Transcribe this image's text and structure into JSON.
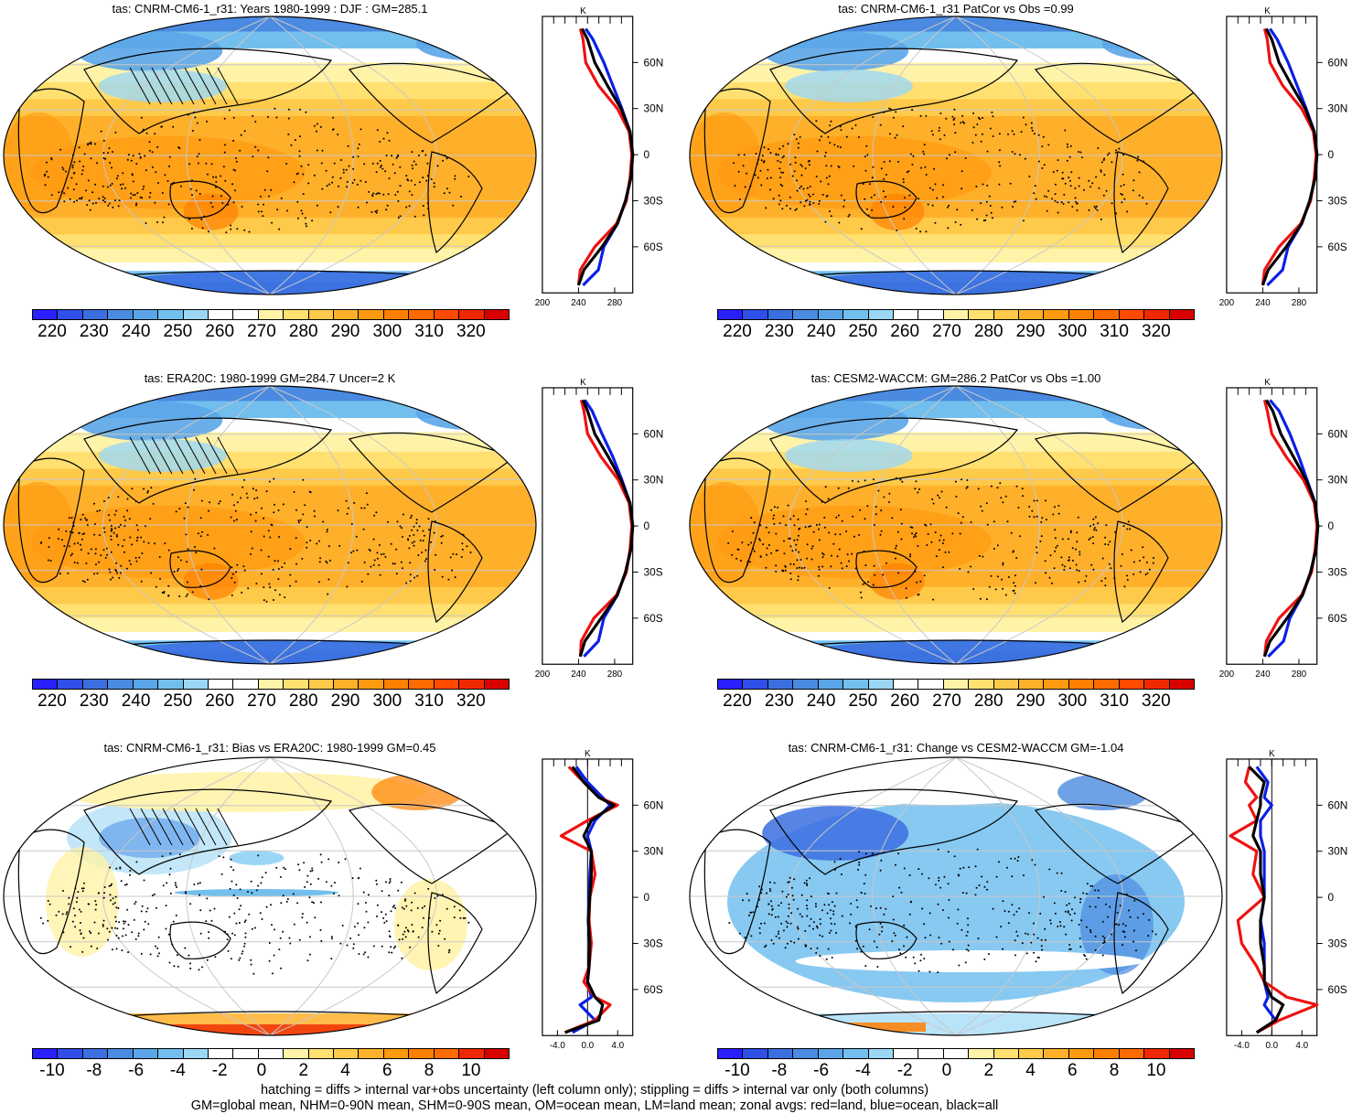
{
  "panels": [
    {
      "title": "tas: CNRM-CM6-1_r31: Years 1980-1999 : DJF : GM=285.1",
      "kind": "abs",
      "profile_xticks": [
        "200",
        "240",
        "280"
      ],
      "cbar_labels": [
        "220",
        "230",
        "240",
        "250",
        "260",
        "270",
        "280",
        "290",
        "300",
        "310",
        "320"
      ]
    },
    {
      "title": "tas: CNRM-CM6-1_r31 PatCor vs Obs =0.99",
      "kind": "abs",
      "profile_xticks": [
        "200",
        "240",
        "280"
      ],
      "cbar_labels": [
        "220",
        "230",
        "240",
        "250",
        "260",
        "270",
        "280",
        "290",
        "300",
        "310",
        "320"
      ]
    },
    {
      "title": "tas: ERA20C: 1980-1999 GM=284.7 Uncer=2 K",
      "kind": "abs",
      "profile_xticks": [
        "200",
        "240",
        "280"
      ],
      "cbar_labels": [
        "220",
        "230",
        "240",
        "250",
        "260",
        "270",
        "280",
        "290",
        "300",
        "310",
        "320"
      ]
    },
    {
      "title": "tas: CESM2-WACCM: GM=286.2 PatCor vs Obs =1.00",
      "kind": "abs",
      "profile_xticks": [
        "200",
        "240",
        "280"
      ],
      "cbar_labels": [
        "220",
        "230",
        "240",
        "250",
        "260",
        "270",
        "280",
        "290",
        "300",
        "310",
        "320"
      ]
    },
    {
      "title": "tas: CNRM-CM6-1_r31: Bias vs ERA20C: 1980-1999 GM=0.45",
      "kind": "diff",
      "profile_xticks": [
        "-4.0",
        "0.0",
        "4.0"
      ],
      "cbar_labels": [
        "-10",
        "-8",
        "-6",
        "-4",
        "-2",
        "0",
        "2",
        "4",
        "6",
        "8",
        "10"
      ]
    },
    {
      "title": "tas: CNRM-CM6-1_r31: Change vs CESM2-WACCM GM=-1.04",
      "kind": "diff",
      "profile_xticks": [
        "-4.0",
        "0.0",
        "4.0"
      ],
      "cbar_labels": [
        "-10",
        "-8",
        "-6",
        "-4",
        "-2",
        "0",
        "2",
        "4",
        "6",
        "8",
        "10"
      ]
    }
  ],
  "profile_units": "K",
  "lat_ticks": [
    "60N",
    "30N",
    "0",
    "30S",
    "60S"
  ],
  "colorbar_colors": [
    "#2a1fff",
    "#2f4fe8",
    "#3b6fe0",
    "#4a8ae0",
    "#5aa5e8",
    "#72bfee",
    "#9bd7f5",
    "#ffffff",
    "#ffffff",
    "#fff3a8",
    "#ffe070",
    "#ffc94a",
    "#ffb02a",
    "#ff9a10",
    "#ff8000",
    "#ff6a00",
    "#ff4a00",
    "#f02800",
    "#d80000"
  ],
  "footer": {
    "line1": "hatching = diffs > internal var+obs uncertainty (left column only); stippling = diffs > internal var only (both columns)",
    "line2": "GM=global mean, NHM=0-90N mean, SHM=0-90S mean, OM=ocean mean, LM=land mean; zonal avgs: red=land, blue=ocean, black=all"
  },
  "chart_data": [
    {
      "type": "heatmap",
      "title": "tas: CNRM-CM6-1_r31: Years 1980-1999 : DJF : GM=285.1",
      "projection": "Robinson",
      "colorbar": {
        "min": 215,
        "max": 325,
        "ticks": [
          220,
          230,
          240,
          250,
          260,
          270,
          280,
          290,
          300,
          310,
          320
        ]
      },
      "zonal_profile": {
        "lat": [
          82,
          75,
          60,
          45,
          30,
          15,
          0,
          -15,
          -30,
          -45,
          -60,
          -75,
          -85
        ],
        "land": [
          242,
          245,
          248,
          262,
          283,
          296,
          299,
          297,
          293,
          282,
          258,
          242,
          240
        ],
        "ocean": [
          248,
          256,
          268,
          278,
          288,
          297,
          300,
          298,
          292,
          283,
          268,
          262,
          245
        ],
        "all": [
          244,
          250,
          258,
          272,
          287,
          297,
          300,
          298,
          292,
          283,
          266,
          246,
          240
        ]
      }
    },
    {
      "type": "heatmap",
      "title": "tas: CNRM-CM6-1_r31 PatCor vs Obs =0.99",
      "projection": "Robinson",
      "colorbar": {
        "min": 215,
        "max": 325,
        "ticks": [
          220,
          230,
          240,
          250,
          260,
          270,
          280,
          290,
          300,
          310,
          320
        ]
      },
      "zonal_profile": {
        "lat": [
          82,
          75,
          60,
          45,
          30,
          15,
          0,
          -15,
          -30,
          -45,
          -60,
          -75,
          -85
        ],
        "land": [
          242,
          245,
          248,
          262,
          283,
          296,
          299,
          297,
          293,
          282,
          258,
          242,
          240
        ],
        "ocean": [
          248,
          256,
          268,
          278,
          288,
          297,
          300,
          298,
          292,
          283,
          268,
          262,
          245
        ],
        "all": [
          244,
          250,
          258,
          272,
          287,
          297,
          300,
          298,
          292,
          283,
          266,
          246,
          240
        ]
      }
    },
    {
      "type": "heatmap",
      "title": "tas: ERA20C: 1980-1999 GM=284.7 Uncer=2 K",
      "projection": "Robinson",
      "colorbar": {
        "min": 215,
        "max": 325,
        "ticks": [
          220,
          230,
          240,
          250,
          260,
          270,
          280,
          290,
          300,
          310,
          320
        ]
      },
      "zonal_profile": {
        "lat": [
          82,
          75,
          60,
          45,
          30,
          15,
          0,
          -15,
          -30,
          -45,
          -60,
          -75,
          -85
        ],
        "land": [
          243,
          246,
          250,
          265,
          284,
          296,
          299,
          297,
          293,
          282,
          257,
          243,
          242
        ],
        "ocean": [
          247,
          255,
          266,
          278,
          288,
          297,
          300,
          298,
          292,
          283,
          268,
          262,
          246
        ],
        "all": [
          245,
          250,
          258,
          273,
          287,
          297,
          300,
          298,
          292,
          283,
          265,
          247,
          242
        ]
      }
    },
    {
      "type": "heatmap",
      "title": "tas: CESM2-WACCM: GM=286.2 PatCor vs Obs =1.00",
      "projection": "Robinson",
      "colorbar": {
        "min": 215,
        "max": 325,
        "ticks": [
          220,
          230,
          240,
          250,
          260,
          270,
          280,
          290,
          300,
          310,
          320
        ]
      },
      "zonal_profile": {
        "lat": [
          82,
          75,
          60,
          45,
          30,
          15,
          0,
          -15,
          -30,
          -45,
          -60,
          -75,
          -85
        ],
        "land": [
          242,
          245,
          250,
          266,
          285,
          297,
          300,
          298,
          294,
          283,
          258,
          244,
          242
        ],
        "ocean": [
          248,
          258,
          270,
          280,
          289,
          298,
          301,
          299,
          293,
          284,
          270,
          263,
          246
        ],
        "all": [
          244,
          251,
          260,
          274,
          288,
          298,
          301,
          299,
          293,
          284,
          267,
          248,
          242
        ]
      }
    },
    {
      "type": "heatmap",
      "title": "tas: CNRM-CM6-1_r31: Bias vs ERA20C: 1980-1999 GM=0.45",
      "projection": "Robinson",
      "colorbar": {
        "min": -11,
        "max": 11,
        "ticks": [
          -10,
          -8,
          -6,
          -4,
          -2,
          0,
          2,
          4,
          6,
          8,
          10
        ]
      },
      "zonal_profile": {
        "lat": [
          85,
          75,
          65,
          60,
          50,
          40,
          30,
          15,
          0,
          -15,
          -30,
          -45,
          -55,
          -65,
          -70,
          -80,
          -88
        ],
        "land": [
          -2.5,
          -0.5,
          1.5,
          4,
          0,
          -3.5,
          0.5,
          1,
          0.3,
          0.2,
          0.5,
          0.2,
          -0.5,
          1,
          3,
          1,
          -3
        ],
        "ocean": [
          -1.5,
          0,
          2,
          3,
          1,
          0,
          0.5,
          0.3,
          0.2,
          0.1,
          0.3,
          0.2,
          0,
          0.5,
          -1,
          1,
          -2
        ],
        "all": [
          -2,
          -0.5,
          1.5,
          3.5,
          0.5,
          -0.5,
          0.5,
          0.5,
          0.3,
          0.1,
          0.3,
          0.2,
          0,
          1,
          2,
          1.5,
          -3
        ]
      }
    },
    {
      "type": "heatmap",
      "title": "tas: CNRM-CM6-1_r31: Change vs CESM2-WACCM GM=-1.04",
      "projection": "Robinson",
      "colorbar": {
        "min": -11,
        "max": 11,
        "ticks": [
          -10,
          -8,
          -6,
          -4,
          -2,
          0,
          2,
          4,
          6,
          8,
          10
        ]
      },
      "zonal_profile": {
        "lat": [
          85,
          75,
          65,
          60,
          50,
          40,
          30,
          15,
          0,
          -15,
          -30,
          -45,
          -55,
          -65,
          -70,
          -80,
          -88
        ],
        "land": [
          -3,
          -3.5,
          -2,
          -3,
          -2,
          -5.5,
          -2,
          -2.5,
          -1,
          -4.5,
          -4,
          -2,
          -1,
          2,
          6,
          1,
          -2
        ],
        "ocean": [
          -2,
          -0.5,
          -1,
          0,
          -1.5,
          -1.5,
          -1,
          -1,
          -1,
          -1.5,
          -1,
          -1,
          -1,
          -0.5,
          -1,
          0.5,
          -2
        ],
        "all": [
          -3,
          -1,
          -1.5,
          -1.5,
          -2,
          -2.5,
          -1.5,
          -1.5,
          -1,
          -1.5,
          -1.5,
          -1,
          -1,
          0,
          1.5,
          0.5,
          -2
        ]
      }
    }
  ]
}
